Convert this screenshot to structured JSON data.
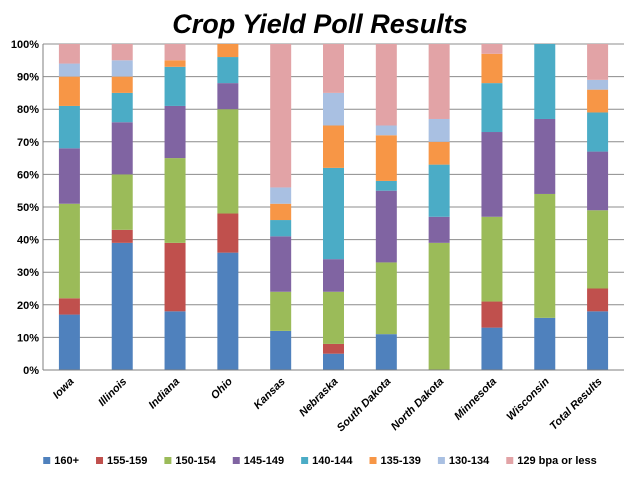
{
  "chart_data": {
    "type": "bar",
    "stacked": true,
    "percent": true,
    "title": "Crop Yield Poll Results",
    "xlabel": "",
    "ylabel": "",
    "ylim": [
      0,
      100
    ],
    "y_ticks": [
      "0%",
      "10%",
      "20%",
      "30%",
      "40%",
      "50%",
      "60%",
      "70%",
      "80%",
      "90%",
      "100%"
    ],
    "grid": true,
    "legend_position": "bottom",
    "categories": [
      "Iowa",
      "Illinois",
      "Indiana",
      "Ohio",
      "Kansas",
      "Nebraska",
      "South Dakota",
      "North Dakota",
      "Minnesota",
      "Wisconsin",
      "Total Results"
    ],
    "series": [
      {
        "name": "160+",
        "color": "#4F81BD",
        "values": [
          17,
          39,
          18,
          36,
          12,
          5,
          11,
          0,
          13,
          16,
          18
        ]
      },
      {
        "name": "155-159",
        "color": "#C0504D",
        "values": [
          5,
          4,
          21,
          12,
          0,
          3,
          0,
          0,
          8,
          0,
          7
        ]
      },
      {
        "name": "150-154",
        "color": "#9BBB59",
        "values": [
          29,
          17,
          26,
          32,
          12,
          16,
          22,
          39,
          26,
          38,
          24
        ]
      },
      {
        "name": "145-149",
        "color": "#8064A2",
        "values": [
          17,
          16,
          16,
          8,
          17,
          10,
          22,
          8,
          26,
          23,
          18
        ]
      },
      {
        "name": "140-144",
        "color": "#4BACC6",
        "values": [
          13,
          9,
          12,
          8,
          5,
          28,
          3,
          16,
          15,
          23,
          12
        ]
      },
      {
        "name": "135-139",
        "color": "#F79646",
        "values": [
          9,
          5,
          2,
          4,
          5,
          13,
          14,
          7,
          9,
          0,
          7
        ]
      },
      {
        "name": "130-134",
        "color": "#A9C0E2",
        "values": [
          4,
          5,
          0,
          0,
          5,
          10,
          3,
          7,
          0,
          0,
          3
        ]
      },
      {
        "name": "129 bpa or less",
        "color": "#E2A3A6",
        "values": [
          6,
          5,
          5,
          0,
          44,
          15,
          25,
          23,
          3,
          0,
          11
        ]
      }
    ]
  }
}
